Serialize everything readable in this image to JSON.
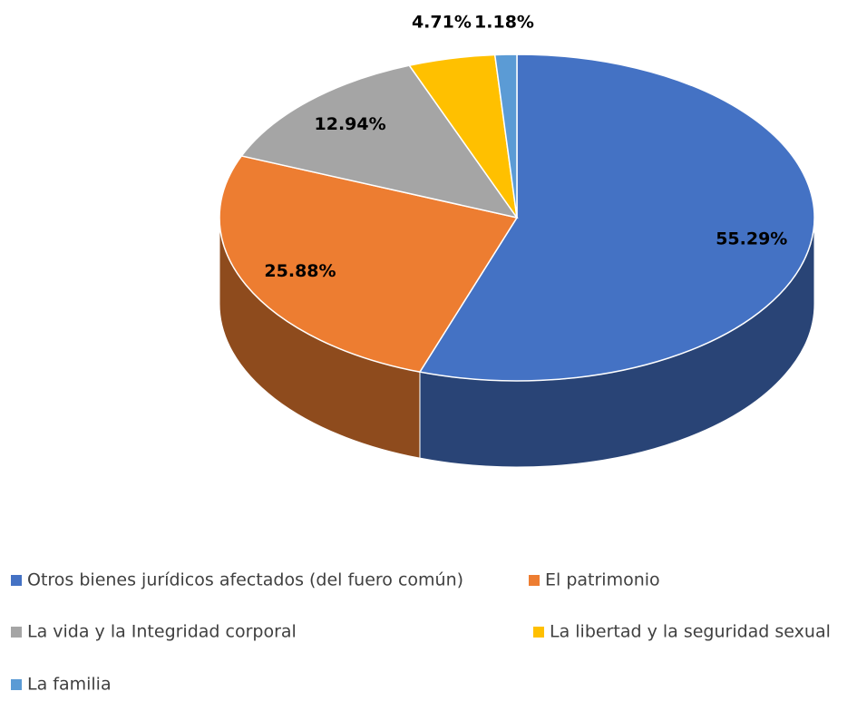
{
  "chart_data": {
    "type": "pie",
    "categories": [
      "Otros bienes jurídicos afectados (del fuero común)",
      "El patrimonio",
      "La vida y la Integridad corporal",
      "La libertad y la seguridad sexual",
      "La familia"
    ],
    "values": [
      55.29,
      25.88,
      12.94,
      4.71,
      1.18
    ],
    "value_labels": [
      "55.29%",
      "25.88%",
      "12.94%",
      "4.71%",
      "1.18%"
    ],
    "colors": [
      "#4472c4",
      "#ed7d31",
      "#a5a5a5",
      "#ffc000",
      "#5b9bd5"
    ],
    "legend": "bottom"
  }
}
